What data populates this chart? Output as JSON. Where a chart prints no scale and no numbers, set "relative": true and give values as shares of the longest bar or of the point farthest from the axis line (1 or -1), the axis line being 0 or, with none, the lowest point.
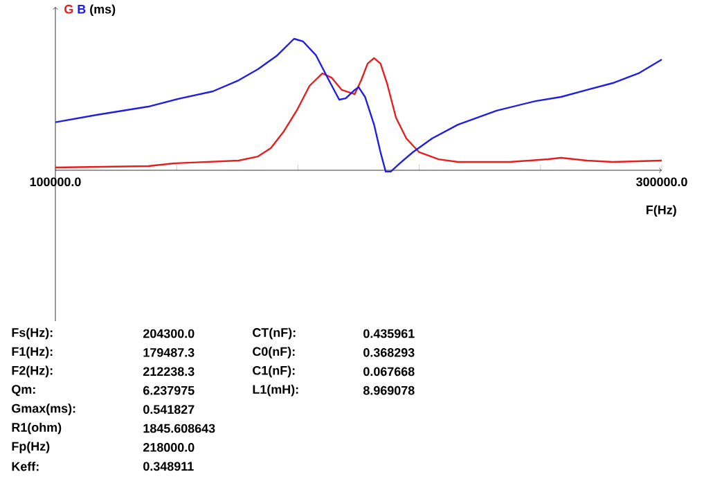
{
  "chart_data": {
    "type": "line",
    "relative": true,
    "ylabel": "(ms)",
    "xlabel": "F(Hz)",
    "xlim": [
      100000,
      300000
    ],
    "xticks": [
      {
        "value": 100000,
        "label": "100000.0"
      },
      {
        "value": 140000,
        "label": null
      },
      {
        "value": 180000,
        "label": null
      },
      {
        "value": 220000,
        "label": null
      },
      {
        "value": 260000,
        "label": null
      },
      {
        "value": 300000,
        "label": "300000.0"
      }
    ],
    "series": [
      {
        "name": "G",
        "color": "#e61e1e",
        "x": [
          100000,
          130638,
          139149,
          160426,
          166809,
          171064,
          175319,
          179574,
          183830,
          188085,
          191064,
          194468,
          198723,
          200851,
          202979,
          205106,
          207234,
          209362,
          212340,
          215745,
          220000,
          226383,
          232766,
          249787,
          262553,
          266809,
          275319,
          283830,
          300000
        ],
        "values": [
          0.021,
          0.032,
          0.053,
          0.074,
          0.105,
          0.168,
          0.295,
          0.453,
          0.642,
          0.737,
          0.705,
          0.611,
          0.579,
          0.684,
          0.811,
          0.853,
          0.811,
          0.663,
          0.4,
          0.242,
          0.137,
          0.084,
          0.063,
          0.063,
          0.084,
          0.095,
          0.074,
          0.063,
          0.074
        ]
      },
      {
        "name": "B",
        "color": "#1e1ee6",
        "x": [
          100000,
          113617,
          130638,
          141277,
          151915,
          160426,
          166809,
          173191,
          178723,
          181702,
          185957,
          190213,
          193617,
          195745,
          198723,
          200000,
          202128,
          205106,
          207234,
          208936,
          210638,
          213617,
          217872,
          224255,
          232766,
          245532,
          258298,
          266809,
          275319,
          283830,
          292340,
          300000
        ],
        "values": [
          0.365,
          0.421,
          0.484,
          0.547,
          0.6,
          0.684,
          0.768,
          0.874,
          1.0,
          0.979,
          0.874,
          0.684,
          0.537,
          0.547,
          0.611,
          0.632,
          0.558,
          0.347,
          0.137,
          -0.01,
          -0.01,
          0.053,
          0.137,
          0.242,
          0.347,
          0.453,
          0.526,
          0.558,
          0.611,
          0.663,
          0.737,
          0.842
        ]
      }
    ],
    "annotations": [
      "Fs(Hz):",
      "204300.0",
      "F1(Hz):",
      "179487.3",
      "F2(Hz):",
      "212238.3",
      "Qm:",
      "6.237975",
      "Gmax(ms):",
      "0.541827",
      "R1(ohm)",
      "1845.608643",
      "Fp(Hz)",
      "218000.0",
      "Keff:",
      "0.348911",
      "CT(nF):",
      "0.435961",
      "C0(nF):",
      "0.368293",
      "C1(nF):",
      "0.067668",
      "L1(mH):",
      "8.969078"
    ]
  }
}
